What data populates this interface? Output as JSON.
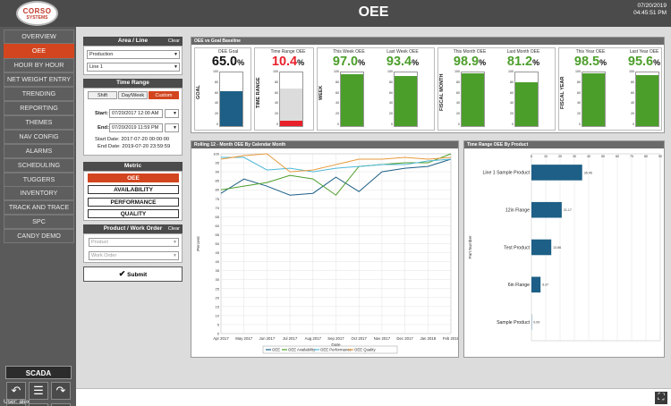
{
  "header": {
    "title": "OEE",
    "date": "07/20/2019",
    "time": "04:45:51 PM",
    "logo_top": "CORSO",
    "logo_bottom": "SYSTEMS"
  },
  "sidebar": {
    "items": [
      {
        "label": "OVERVIEW",
        "active": false
      },
      {
        "label": "OEE",
        "active": true
      },
      {
        "label": "HOUR BY HOUR",
        "active": false
      },
      {
        "label": "NET WEIGHT ENTRY",
        "active": false
      },
      {
        "label": "TRENDING",
        "active": false
      },
      {
        "label": "REPORTING",
        "active": false
      },
      {
        "label": "THEMES",
        "active": false
      },
      {
        "label": "NAV CONFIG",
        "active": false
      },
      {
        "label": "ALARMS",
        "active": false
      },
      {
        "label": "SCHEDULING",
        "active": false
      },
      {
        "label": "TUGGERS",
        "active": false
      },
      {
        "label": "INVENTORY",
        "active": false
      },
      {
        "label": "TRACK AND TRACE",
        "active": false
      },
      {
        "label": "SPC",
        "active": false
      },
      {
        "label": "CANDY DEMO",
        "active": false
      }
    ],
    "scada_label": "SCADA",
    "user_label": "User: alex"
  },
  "area_line": {
    "title": "Area / Line",
    "clear": "Clear",
    "area_value": "Production",
    "line_value": "Line 1"
  },
  "time_range": {
    "title": "Time Range",
    "tabs": [
      "Shift",
      "Day/Week",
      "Custom"
    ],
    "active_tab": "Custom",
    "start_label": "Start:",
    "start_value": "07/20/2017 12:00 AM",
    "end_label": "End:",
    "end_value": "07/20/2019 11:59 PM",
    "start_date_text": "Start Date: 2017-07-20 00:00:00",
    "end_date_text": "End Date: 2019-07-20 23:59:59"
  },
  "metric": {
    "title": "Metric",
    "options": [
      "OEE",
      "AVAILABILITY",
      "PERFORMANCE",
      "QUALITY"
    ],
    "active": "OEE"
  },
  "product_wo": {
    "title": "Product / Work Order",
    "clear": "Clear",
    "product_placeholder": "Product",
    "work_order_placeholder": "Work Order",
    "submit_label": "Submit"
  },
  "kpi": {
    "title": "OEE vs Goal Baseline",
    "y_ticks": [
      "100",
      "80",
      "60",
      "40",
      "20",
      "0"
    ],
    "groups": [
      {
        "label": "GOAL",
        "cols": [
          {
            "caption": "OEE Goal",
            "value": "65.0",
            "unit": "%",
            "value_color": "#111111",
            "fill": 65,
            "fill_color": "#1d5f86"
          }
        ]
      },
      {
        "label": "TIME RANGE",
        "cols": [
          {
            "caption": "Time Range OEE",
            "value": "10.4",
            "unit": "%",
            "value_color": "#e8202a",
            "fill": 10.4,
            "fill_color": "#e8202a",
            "gray": 70
          }
        ]
      },
      {
        "label": "WEEK",
        "cols": [
          {
            "caption": "This Week OEE",
            "value": "97.0",
            "unit": "%",
            "value_color": "#4c9e2a",
            "fill": 97,
            "fill_color": "#4c9e2a"
          },
          {
            "caption": "Last Week OEE",
            "value": "93.4",
            "unit": "%",
            "value_color": "#4c9e2a",
            "fill": 93.4,
            "fill_color": "#4c9e2a"
          }
        ]
      },
      {
        "label": "FISCAL MONTH",
        "cols": [
          {
            "caption": "This Month OEE",
            "value": "98.9",
            "unit": "%",
            "value_color": "#4c9e2a",
            "fill": 98.9,
            "fill_color": "#4c9e2a"
          },
          {
            "caption": "Last Month OEE",
            "value": "81.2",
            "unit": "%",
            "value_color": "#4c9e2a",
            "fill": 81.2,
            "fill_color": "#4c9e2a"
          }
        ]
      },
      {
        "label": "FISCAL YEAR",
        "cols": [
          {
            "caption": "This Year OEE",
            "value": "98.5",
            "unit": "%",
            "value_color": "#4c9e2a",
            "fill": 98.5,
            "fill_color": "#4c9e2a"
          },
          {
            "caption": "Last Year OEE",
            "value": "95.6",
            "unit": "%",
            "value_color": "#4c9e2a",
            "fill": 95.6,
            "fill_color": "#4c9e2a"
          }
        ]
      }
    ]
  },
  "chart_data": [
    {
      "type": "line",
      "title": "Rolling 12 - Month OEE By Calendar Month",
      "xlabel": "Date",
      "ylabel": "Percent",
      "categories": [
        "Apr 2017",
        "May 2017",
        "Jun 2017",
        "Jul 2017",
        "Aug 2017",
        "Sep 2017",
        "Oct 2017",
        "Nov 2017",
        "Dec 2017",
        "Jan 2018",
        "Feb 2018"
      ],
      "x_ticks": [
        "Apr 2017",
        "May 2017",
        "Jun 2017",
        "Jul 2017",
        "Aug 2017",
        "Sep 2017",
        "Oct 2017",
        "Nov 2017",
        "Dec 2017",
        "Jan 2018",
        "Feb 2018"
      ],
      "ylim": [
        0,
        100
      ],
      "y_ticks": [
        0,
        5,
        10,
        15,
        20,
        25,
        30,
        35,
        40,
        45,
        50,
        55,
        60,
        65,
        70,
        75,
        80,
        85,
        90,
        95,
        100
      ],
      "grid": true,
      "legend": "bottom",
      "series": [
        {
          "name": "OEE",
          "color": "#1d5f86",
          "values": [
            78,
            86,
            82,
            77,
            78,
            87,
            79,
            90,
            92,
            93,
            97
          ]
        },
        {
          "name": "OEE Availability",
          "color": "#4c9e2a",
          "values": [
            80,
            82,
            84,
            88,
            86,
            77,
            93,
            94,
            95,
            95,
            100
          ]
        },
        {
          "name": "OEE Performance",
          "color": "#4fb8d8",
          "values": [
            98,
            98,
            91,
            92,
            90,
            92,
            93,
            94,
            94,
            96,
            97
          ]
        },
        {
          "name": "OEE Quality",
          "color": "#e89a3c",
          "values": [
            97,
            99,
            100,
            90,
            91,
            94,
            97,
            97,
            98,
            97,
            98
          ]
        }
      ]
    },
    {
      "type": "bar",
      "orientation": "horizontal",
      "title": "Time Range OEE By Product",
      "xlabel": "",
      "ylabel": "Part Number",
      "categories": [
        "Line 1 Sample Product",
        "12in Flange",
        "Test Product",
        "6in Flange",
        "Sample Product"
      ],
      "values": [
        35.45,
        21.17,
        13.86,
        6.37,
        0.09
      ],
      "value_labels": [
        "35.45",
        "21.17",
        "13.86",
        "6.37",
        "0.09"
      ],
      "color": "#1d5f86",
      "xlim": [
        0,
        90
      ],
      "x_ticks": [
        0,
        10,
        20,
        30,
        40,
        50,
        60,
        70,
        80,
        90
      ],
      "grid": true
    }
  ]
}
